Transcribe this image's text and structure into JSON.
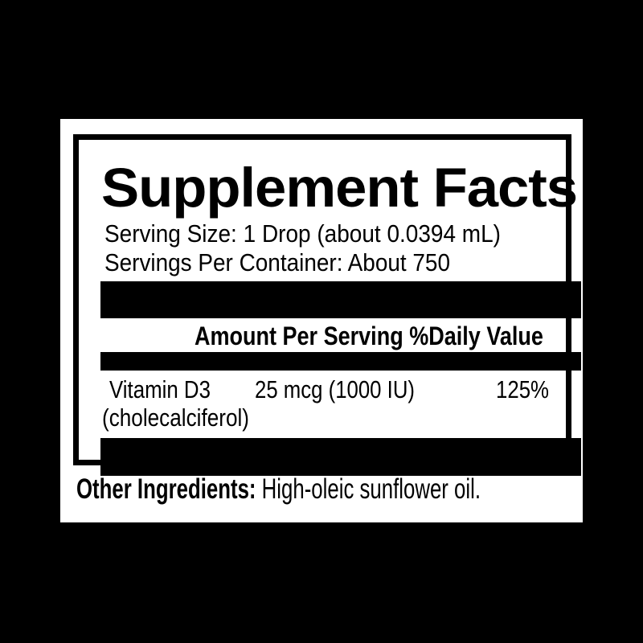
{
  "label": {
    "title": "Supplement Facts",
    "serving_size": "Serving Size: 1 Drop (about 0.0394 mL)",
    "servings_per_container": "Servings Per Container: About 750",
    "column_header": "Amount Per Serving %Daily Value",
    "nutrients": [
      {
        "name": "Vitamin D3",
        "name_detail": "(cholecalciferol)",
        "amount": "25 mcg (1000 IU)",
        "daily_value": "125%"
      }
    ],
    "other_ingredients_label": "Other Ingredients:",
    "other_ingredients_value": "High-oleic sunflower oil.",
    "colors": {
      "background": "#000000",
      "panel": "#ffffff",
      "ink": "#000000"
    }
  }
}
